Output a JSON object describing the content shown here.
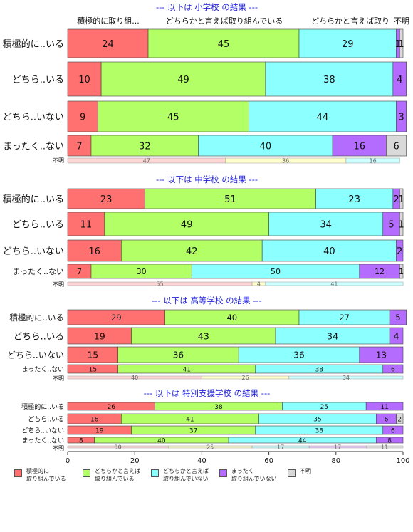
{
  "colors": {
    "active": "#ff7070",
    "somewhat_active": "#b3ff66",
    "somewhat_inactive": "#8cffff",
    "inactive": "#b46cff",
    "unknown": "#d9d9d9",
    "title": "#2222dd",
    "unknown_bar": [
      "#ffd6d6",
      "#ffffcc",
      "#ccffff",
      "#f0ccff",
      "#e8e8e8"
    ]
  },
  "top_header": [
    "積極的に取り組...",
    "どちらかと言えば取り組んでいる",
    "どちらかと言えば取り",
    "不明"
  ],
  "chart_data": {
    "type": "bar",
    "orientation": "horizontal",
    "stacked": true,
    "xlim": [
      0,
      100
    ],
    "xticks": [
      0,
      20,
      40,
      60,
      80,
      100
    ],
    "unknown_row_label": "不明",
    "legend": {
      "position": "bottom",
      "entries": [
        "積極的に\n取り組んでいる",
        "どちらかと言えば\n取り組んでいる",
        "どちらかと言えば\n取り組んでいない",
        "まったく\n取り組んでいない",
        "不明"
      ]
    },
    "panels": [
      {
        "title": "--- 以下は 小学校 の結果 ---",
        "rows": [
          {
            "label": "積極的に..いる",
            "values": [
              24,
              45,
              29,
              1,
              1
            ]
          },
          {
            "label": "どちら..いる",
            "values": [
              10,
              49,
              38,
              4,
              0
            ]
          },
          {
            "label": "どちら..いない",
            "values": [
              9,
              45,
              44,
              3,
              0
            ]
          },
          {
            "label": "まったく..ない",
            "values": [
              7,
              32,
              40,
              16,
              6
            ]
          }
        ],
        "unknown": [
          47,
          36,
          16,
          0,
          0
        ]
      },
      {
        "title": "--- 以下は 中学校 の結果 ---",
        "rows": [
          {
            "label": "積極的に..いる",
            "values": [
              23,
              51,
              23,
              2,
              1
            ]
          },
          {
            "label": "どちら..いる",
            "values": [
              11,
              49,
              34,
              5,
              1
            ]
          },
          {
            "label": "どちら..いない",
            "values": [
              16,
              42,
              40,
              2,
              0
            ]
          },
          {
            "label": "まったく..ない",
            "values": [
              7,
              30,
              50,
              12,
              1
            ]
          }
        ],
        "unknown": [
          55,
          4,
          41,
          0,
          0
        ]
      },
      {
        "title": "--- 以下は 高等学校 の結果 ---",
        "rows": [
          {
            "label": "積極的に..いる",
            "values": [
              29,
              40,
              27,
              5,
              0
            ]
          },
          {
            "label": "どちら..いる",
            "values": [
              19,
              43,
              34,
              4,
              0
            ]
          },
          {
            "label": "どちら..いない",
            "values": [
              15,
              36,
              36,
              13,
              0
            ]
          },
          {
            "label": "まったく..ない",
            "values": [
              15,
              41,
              38,
              6,
              0
            ]
          }
        ],
        "unknown": [
          40,
          26,
          34,
          0,
          0
        ]
      },
      {
        "title": "--- 以下は 特別支援学校 の結果 ---",
        "rows": [
          {
            "label": "積極的に..いる",
            "values": [
              26,
              38,
              25,
              11,
              0
            ]
          },
          {
            "label": "どちら..いる",
            "values": [
              16,
              41,
              35,
              6,
              2
            ]
          },
          {
            "label": "どちら..いない",
            "values": [
              19,
              37,
              38,
              6,
              0
            ]
          },
          {
            "label": "まったく..ない",
            "values": [
              8,
              40,
              44,
              8,
              0
            ]
          }
        ],
        "unknown": [
          30,
          25,
          17,
          17,
          11
        ]
      }
    ]
  }
}
